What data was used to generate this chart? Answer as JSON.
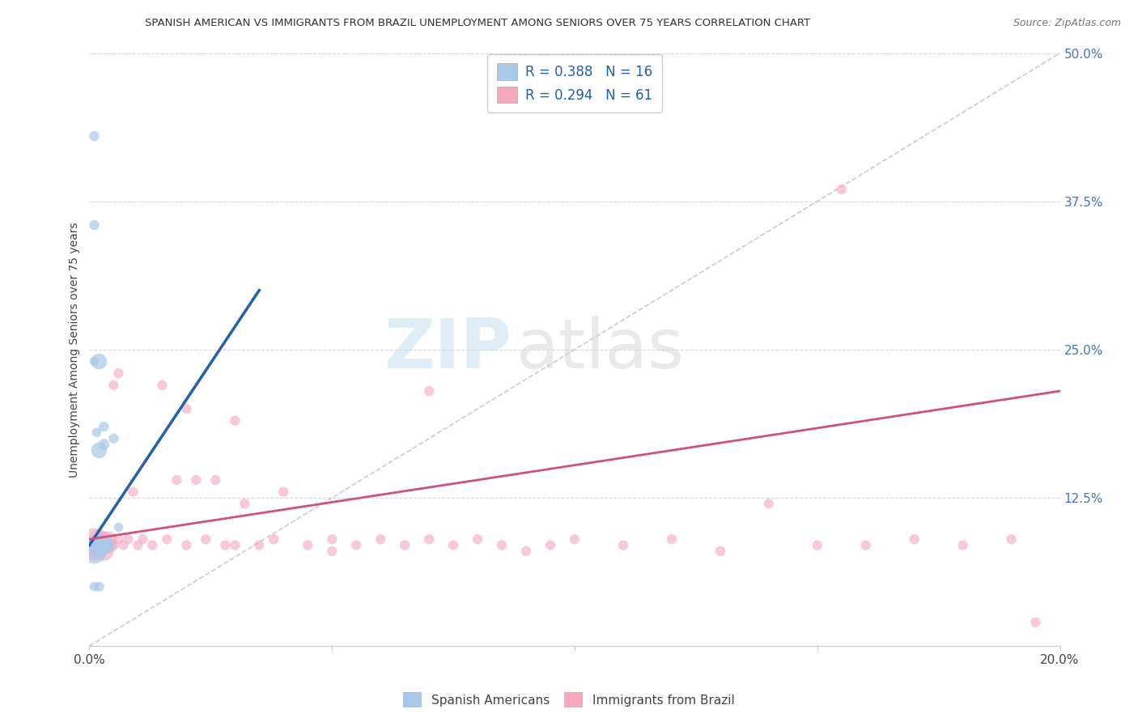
{
  "title": "SPANISH AMERICAN VS IMMIGRANTS FROM BRAZIL UNEMPLOYMENT AMONG SENIORS OVER 75 YEARS CORRELATION CHART",
  "source": "Source: ZipAtlas.com",
  "ylabel": "Unemployment Among Seniors over 75 years",
  "xlim": [
    0.0,
    0.2
  ],
  "ylim": [
    0.0,
    0.5
  ],
  "xticks": [
    0.0,
    0.05,
    0.1,
    0.15,
    0.2
  ],
  "yticks": [
    0.0,
    0.125,
    0.25,
    0.375,
    0.5
  ],
  "blue_R": "0.388",
  "blue_N": "16",
  "pink_R": "0.294",
  "pink_N": "61",
  "legend_label_blue": "Spanish Americans",
  "legend_label_pink": "Immigrants from Brazil",
  "blue_color": "#a8c8e8",
  "pink_color": "#f4a8be",
  "blue_line_color": "#2060b0",
  "pink_line_color": "#d05080",
  "watermark_zip": "ZIP",
  "watermark_atlas": "atlas",
  "background_color": "#ffffff",
  "blue_line_x0": 0.0,
  "blue_line_y0": 0.085,
  "blue_line_x1": 0.035,
  "blue_line_y1": 0.3,
  "pink_line_x0": 0.0,
  "pink_line_y0": 0.09,
  "pink_line_x1": 0.2,
  "pink_line_y1": 0.215,
  "ref_line_x0": 0.0,
  "ref_line_y0": 0.0,
  "ref_line_x1": 0.2,
  "ref_line_y1": 0.5,
  "blue_x": [
    0.001,
    0.001,
    0.001,
    0.0015,
    0.002,
    0.002,
    0.003,
    0.003,
    0.005,
    0.006,
    0.001,
    0.002,
    0.003,
    0.004,
    0.002,
    0.001
  ],
  "blue_y": [
    0.43,
    0.355,
    0.24,
    0.18,
    0.165,
    0.24,
    0.17,
    0.185,
    0.175,
    0.1,
    0.08,
    0.085,
    0.085,
    0.085,
    0.05,
    0.05
  ],
  "blue_sizes": [
    80,
    80,
    70,
    70,
    200,
    200,
    100,
    80,
    80,
    70,
    500,
    400,
    300,
    100,
    80,
    70
  ],
  "pink_x": [
    0.001,
    0.001,
    0.001,
    0.002,
    0.002,
    0.002,
    0.003,
    0.003,
    0.003,
    0.004,
    0.004,
    0.005,
    0.005,
    0.006,
    0.006,
    0.007,
    0.008,
    0.009,
    0.01,
    0.011,
    0.013,
    0.015,
    0.016,
    0.018,
    0.02,
    0.022,
    0.024,
    0.026,
    0.028,
    0.03,
    0.032,
    0.035,
    0.038,
    0.04,
    0.045,
    0.05,
    0.055,
    0.06,
    0.065,
    0.07,
    0.075,
    0.08,
    0.085,
    0.09,
    0.095,
    0.1,
    0.11,
    0.12,
    0.13,
    0.14,
    0.155,
    0.16,
    0.17,
    0.18,
    0.19,
    0.195,
    0.02,
    0.03,
    0.05,
    0.07,
    0.15
  ],
  "pink_y": [
    0.09,
    0.085,
    0.08,
    0.09,
    0.085,
    0.08,
    0.09,
    0.085,
    0.08,
    0.09,
    0.085,
    0.22,
    0.085,
    0.23,
    0.09,
    0.085,
    0.09,
    0.13,
    0.085,
    0.09,
    0.085,
    0.22,
    0.09,
    0.14,
    0.085,
    0.14,
    0.09,
    0.14,
    0.085,
    0.085,
    0.12,
    0.085,
    0.09,
    0.13,
    0.085,
    0.09,
    0.085,
    0.09,
    0.085,
    0.09,
    0.085,
    0.09,
    0.085,
    0.08,
    0.085,
    0.09,
    0.085,
    0.09,
    0.08,
    0.12,
    0.385,
    0.085,
    0.09,
    0.085,
    0.09,
    0.02,
    0.2,
    0.19,
    0.08,
    0.215,
    0.085
  ],
  "pink_sizes": [
    400,
    300,
    300,
    300,
    300,
    200,
    200,
    200,
    300,
    200,
    200,
    80,
    80,
    80,
    80,
    80,
    80,
    80,
    80,
    80,
    80,
    80,
    80,
    80,
    80,
    80,
    80,
    80,
    80,
    80,
    80,
    80,
    80,
    80,
    80,
    80,
    80,
    80,
    80,
    80,
    80,
    80,
    80,
    80,
    80,
    80,
    80,
    80,
    80,
    80,
    80,
    80,
    80,
    80,
    80,
    80,
    80,
    80,
    80,
    80,
    80
  ]
}
